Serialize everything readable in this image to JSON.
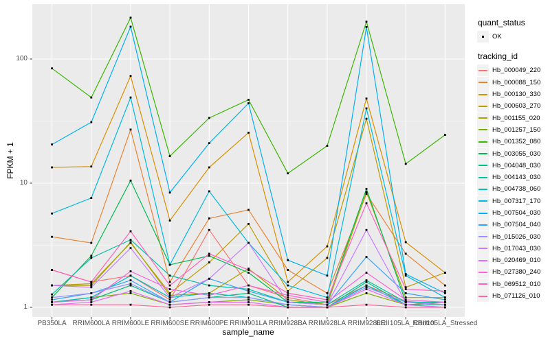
{
  "chart": {
    "y_axis": {
      "title": "FPKM + 1",
      "scale": "log10",
      "ticks": [
        {
          "label": "100",
          "value": 100
        },
        {
          "label": "10",
          "value": 10
        },
        {
          "label": "1",
          "value": 1
        }
      ]
    },
    "x_axis": {
      "title": "sample_name"
    },
    "legend": {
      "quant_status": {
        "title": "quant_status",
        "entries": [
          {
            "label": "OK",
            "marker": "black-square-point"
          }
        ]
      },
      "tracking_id": {
        "title": "tracking_id"
      }
    }
  },
  "chart_data": {
    "type": "line",
    "title": "",
    "xlabel": "sample_name",
    "ylabel": "FPKM + 1",
    "yscale": "log",
    "ylim": [
      0.85,
      280
    ],
    "grid": true,
    "legend_position": "right",
    "point_marker": "small-black-square",
    "x": [
      "PB350LA",
      "RRIM600LA",
      "RRIM600LE",
      "RRIM600SE",
      "RRIM600PE",
      "RRIM901LA",
      "RRIM928BA",
      "RRIM928LA",
      "RRIM928LE",
      "RRII105LA_Control",
      "RRII105LA_Stressed"
    ],
    "series": [
      {
        "name": "Hb_000049_220",
        "color": "#F8766D",
        "values": [
          2.0,
          1.6,
          1.8,
          1.15,
          4.2,
          1.5,
          1.2,
          1.05,
          1.5,
          1.12,
          1.05
        ]
      },
      {
        "name": "Hb_000088_150",
        "color": "#EA8331",
        "values": [
          3.7,
          3.3,
          27,
          1.6,
          5.2,
          6.1,
          2.0,
          1.3,
          8.2,
          2.7,
          1.5
        ]
      },
      {
        "name": "Hb_000130_330",
        "color": "#D89000",
        "values": [
          13.4,
          13.6,
          73,
          5.0,
          13.4,
          25.5,
          1.6,
          3.1,
          48,
          3.35,
          1.9
        ]
      },
      {
        "name": "Hb_000603_270",
        "color": "#C09B00",
        "values": [
          1.5,
          1.55,
          3.3,
          1.3,
          2.3,
          4.7,
          1.35,
          2.5,
          33,
          1.45,
          1.9
        ]
      },
      {
        "name": "Hb_001155_020",
        "color": "#A3A500",
        "values": [
          1.5,
          1.5,
          3.35,
          1.25,
          1.3,
          2.05,
          1.15,
          1.05,
          8.5,
          1.2,
          1.2
        ]
      },
      {
        "name": "Hb_001257_150",
        "color": "#7CAE00",
        "values": [
          1.1,
          1.2,
          1.3,
          1.05,
          1.1,
          1.15,
          1.05,
          1.0,
          1.3,
          1.05,
          1.1
        ]
      },
      {
        "name": "Hb_001352_080",
        "color": "#39B600",
        "values": [
          84,
          49,
          215,
          16.5,
          33.5,
          47,
          12,
          20,
          200,
          14.3,
          24.5
        ]
      },
      {
        "name": "Hb_003055_030",
        "color": "#00BB4E",
        "values": [
          1.2,
          2.6,
          10.5,
          2.2,
          2.6,
          1.9,
          1.1,
          1.1,
          9.0,
          1.1,
          1.1
        ]
      },
      {
        "name": "Hb_004048_030",
        "color": "#00BF7D",
        "values": [
          1.1,
          1.15,
          1.5,
          1.1,
          1.2,
          1.3,
          1.0,
          1.0,
          1.6,
          1.05,
          1.05
        ]
      },
      {
        "name": "Hb_004143_030",
        "color": "#00C1A3",
        "values": [
          1.27,
          2.5,
          3.5,
          1.8,
          1.5,
          1.4,
          1.1,
          1.05,
          1.65,
          1.1,
          1.1
        ]
      },
      {
        "name": "Hb_004738_060",
        "color": "#00BFC4",
        "values": [
          1.1,
          1.2,
          1.8,
          1.2,
          1.3,
          1.2,
          1.05,
          1.0,
          1.5,
          1.05,
          1.0
        ]
      },
      {
        "name": "Hb_007317_170",
        "color": "#00BAE0",
        "values": [
          5.7,
          7.6,
          49,
          2.2,
          8.6,
          3.3,
          1.5,
          1.2,
          40,
          1.8,
          1.2
        ]
      },
      {
        "name": "Hb_007504_030",
        "color": "#00B0F6",
        "values": [
          20.5,
          31,
          182,
          8.4,
          21,
          44,
          2.4,
          1.8,
          181,
          1.85,
          1.3
        ]
      },
      {
        "name": "Hb_007504_040",
        "color": "#35A2FF",
        "values": [
          1.15,
          1.3,
          1.65,
          1.1,
          1.7,
          1.35,
          1.1,
          1.05,
          2.55,
          1.3,
          1.15
        ]
      },
      {
        "name": "Hb_015026_030",
        "color": "#9590FF",
        "values": [
          1.2,
          1.3,
          1.55,
          1.1,
          1.2,
          1.2,
          1.05,
          1.0,
          1.45,
          1.1,
          1.05
        ]
      },
      {
        "name": "Hb_017043_030",
        "color": "#C77CFF",
        "values": [
          1.5,
          1.45,
          3.0,
          1.2,
          1.7,
          3.3,
          1.1,
          1.05,
          4.2,
          1.1,
          1.05
        ]
      },
      {
        "name": "Hb_020469_010",
        "color": "#E76BF3",
        "values": [
          1.05,
          1.1,
          1.35,
          1.05,
          1.1,
          1.1,
          1.0,
          1.0,
          1.4,
          1.05,
          1.0
        ]
      },
      {
        "name": "Hb_027380_240",
        "color": "#FA62DB",
        "values": [
          1.1,
          1.15,
          1.95,
          1.4,
          1.25,
          1.5,
          1.25,
          1.1,
          1.9,
          1.15,
          1.1
        ]
      },
      {
        "name": "Hb_069512_010",
        "color": "#FF62BC",
        "values": [
          2.0,
          1.6,
          4.1,
          1.5,
          2.7,
          2.0,
          1.3,
          1.15,
          6.9,
          1.4,
          1.35
        ]
      },
      {
        "name": "Hb_071126_010",
        "color": "#FF6A98",
        "values": [
          1.05,
          1.05,
          1.05,
          1.0,
          1.05,
          1.05,
          1.0,
          1.0,
          1.05,
          1.0,
          1.0
        ]
      }
    ]
  },
  "colors": {
    "panel_bg": "#EBEBEB",
    "gridline": "#FFFFFF",
    "tick_text": "#4D4D4D",
    "tick_mark": "#333333",
    "legend_key_bg": "#F2F2F2",
    "point": "#000000"
  }
}
